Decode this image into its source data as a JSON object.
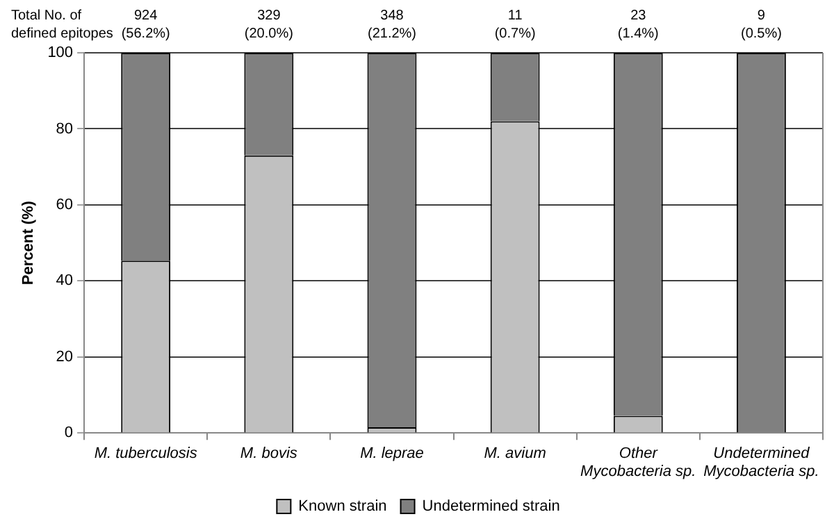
{
  "chart_data": {
    "type": "bar",
    "stacked": true,
    "categories": [
      "M. tuberculosis",
      "M. bovis",
      "M. leprae",
      "M. avium",
      "Other Mycobacteria sp.",
      "Undetermined Mycobacteria sp."
    ],
    "series": [
      {
        "name": "Known strain",
        "color": "#c0c0c0",
        "values": [
          45.3,
          73,
          1.5,
          82,
          4.5,
          0
        ]
      },
      {
        "name": "Undetermined strain",
        "color": "#808080",
        "values": [
          54.7,
          27,
          98.5,
          18,
          95.5,
          100
        ]
      }
    ],
    "ylabel": "Percent (%)",
    "ylim": [
      0,
      100
    ],
    "yticks": [
      0,
      20,
      40,
      60,
      80,
      100
    ],
    "grid": "y",
    "legend": "bottom",
    "annotations": [
      "Total No. of\ndefined epitopes",
      "924\n(56.2%)",
      "329\n(20.0%)",
      "348\n(21.2%)",
      "11\n(0.7%)",
      "23\n(1.4%)",
      "9\n(0.5%)"
    ]
  }
}
